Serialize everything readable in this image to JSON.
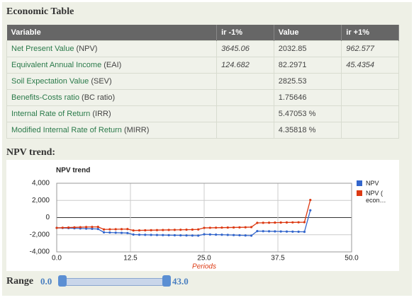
{
  "header": {
    "title": "Economic Table"
  },
  "table": {
    "columns": [
      "Variable",
      "ir -1%",
      "Value",
      "ir +1%"
    ],
    "rows": [
      {
        "name": "Net Present Value",
        "abbr": "(NPV)",
        "cells": [
          "3645.06",
          "2032.85",
          "962.577"
        ]
      },
      {
        "name": "Equivalent Annual Income",
        "abbr": "(EAI)",
        "cells": [
          "124.682",
          "82.2971",
          "45.4354"
        ]
      },
      {
        "name": "Soil Expectation Value",
        "abbr": "(SEV)",
        "cells": [
          "",
          "2825.53",
          ""
        ]
      },
      {
        "name": "Benefits-Costs ratio",
        "abbr": "(BC ratio)",
        "cells": [
          "",
          "1.75646",
          ""
        ]
      },
      {
        "name": "Internal Rate of Return",
        "abbr": "(IRR)",
        "cells": [
          "",
          "5.47053 %",
          ""
        ]
      },
      {
        "name": "Modified Internal Rate of Return",
        "abbr": "(MIRR)",
        "cells": [
          "",
          "4.35818 %",
          ""
        ]
      }
    ]
  },
  "trend_heading": "NPV trend:",
  "chart_data": {
    "type": "line",
    "title": "NPV trend",
    "x_label": "Periods",
    "x": [
      0,
      1,
      2,
      3,
      4,
      5,
      6,
      7,
      8,
      9,
      10,
      11,
      12,
      13,
      14,
      15,
      16,
      17,
      18,
      19,
      20,
      21,
      22,
      23,
      24,
      25,
      26,
      27,
      28,
      29,
      30,
      31,
      32,
      33,
      34,
      35,
      36,
      37,
      38,
      39,
      40,
      41,
      42,
      43
    ],
    "series": [
      {
        "name": "NPV",
        "color": "#3366cc",
        "values": [
          -1200,
          -1210,
          -1230,
          -1250,
          -1270,
          -1290,
          -1310,
          -1330,
          -1720,
          -1740,
          -1760,
          -1780,
          -1800,
          -1980,
          -2000,
          -2010,
          -2020,
          -2030,
          -2040,
          -2050,
          -2060,
          -2070,
          -2080,
          -2090,
          -2100,
          -1950,
          -1970,
          -1990,
          -2000,
          -2020,
          -2040,
          -2060,
          -2080,
          -2100,
          -1580,
          -1590,
          -1600,
          -1610,
          -1620,
          -1630,
          -1640,
          -1650,
          -1660,
          850
        ]
      },
      {
        "name": "NPV ( econ…",
        "color": "#dc3912",
        "values": [
          -1200,
          -1180,
          -1160,
          -1140,
          -1120,
          -1100,
          -1090,
          -1080,
          -1380,
          -1370,
          -1360,
          -1350,
          -1340,
          -1500,
          -1490,
          -1480,
          -1470,
          -1460,
          -1450,
          -1440,
          -1430,
          -1420,
          -1410,
          -1400,
          -1380,
          -1200,
          -1190,
          -1180,
          -1170,
          -1160,
          -1150,
          -1140,
          -1130,
          -1110,
          -620,
          -610,
          -600,
          -590,
          -580,
          -570,
          -560,
          -550,
          -540,
          2050
        ]
      }
    ],
    "xlim": [
      0,
      50
    ],
    "xticks": [
      {
        "value": 0,
        "label": "0.0"
      },
      12.5,
      {
        "value": 25,
        "label": "25.0"
      },
      37.5,
      {
        "value": 50,
        "label": "50.0"
      }
    ],
    "ylim": [
      -4000,
      4000
    ],
    "yticks": [
      {
        "value": 4000,
        "label": "4,000"
      },
      {
        "value": 2000,
        "label": "2,000"
      },
      0,
      {
        "value": -2000,
        "label": "-2,000"
      },
      {
        "value": -4000,
        "label": "-4,000"
      }
    ],
    "grid": true,
    "legend": "right"
  },
  "range": {
    "label": "Range",
    "min": "0.0",
    "max": "43.0"
  }
}
